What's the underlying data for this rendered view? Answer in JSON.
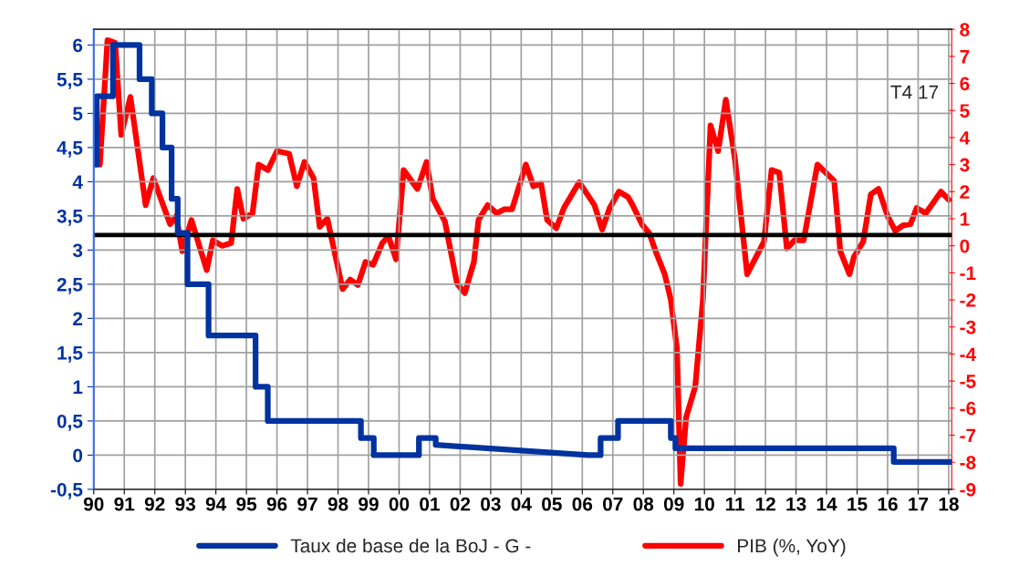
{
  "chart_data": {
    "type": "line",
    "xlim": [
      1990,
      2018.1
    ],
    "xticks": [
      {
        "value": 1990,
        "label": "90"
      },
      {
        "value": 1991,
        "label": "91"
      },
      {
        "value": 1992,
        "label": "92"
      },
      {
        "value": 1993,
        "label": "93"
      },
      {
        "value": 1994,
        "label": "94"
      },
      {
        "value": 1995,
        "label": "95"
      },
      {
        "value": 1996,
        "label": "96"
      },
      {
        "value": 1997,
        "label": "97"
      },
      {
        "value": 1998,
        "label": "98"
      },
      {
        "value": 1999,
        "label": "99"
      },
      {
        "value": 2000,
        "label": "00"
      },
      {
        "value": 2001,
        "label": "01"
      },
      {
        "value": 2002,
        "label": "02"
      },
      {
        "value": 2003,
        "label": "03"
      },
      {
        "value": 2004,
        "label": "04"
      },
      {
        "value": 2005,
        "label": "05"
      },
      {
        "value": 2006,
        "label": "06"
      },
      {
        "value": 2007,
        "label": "07"
      },
      {
        "value": 2008,
        "label": "08"
      },
      {
        "value": 2009,
        "label": "09"
      },
      {
        "value": 2010,
        "label": "10"
      },
      {
        "value": 2011,
        "label": "11"
      },
      {
        "value": 2012,
        "label": "12"
      },
      {
        "value": 2013,
        "label": "13"
      },
      {
        "value": 2014,
        "label": "14"
      },
      {
        "value": 2015,
        "label": "15"
      },
      {
        "value": 2016,
        "label": "16"
      },
      {
        "value": 2017,
        "label": "17"
      },
      {
        "value": 2018,
        "label": "18"
      }
    ],
    "ylim": [
      -0.5,
      6.23
    ],
    "yticks": [
      {
        "value": -0.5,
        "label": "-0,5"
      },
      0,
      {
        "value": 0.5,
        "label": "0,5"
      },
      1,
      {
        "value": 1.5,
        "label": "1,5"
      },
      2,
      {
        "value": 2.5,
        "label": "2,5"
      },
      3,
      {
        "value": 3.5,
        "label": "3,5"
      },
      4,
      {
        "value": 4.5,
        "label": "4,5"
      },
      5,
      {
        "value": 5.5,
        "label": "5,5"
      },
      6
    ],
    "y2lim": [
      -9,
      8
    ],
    "y2ticks": [
      -9,
      -8,
      -7,
      -6,
      -5,
      -4,
      -3,
      -2,
      -1,
      0,
      1,
      2,
      3,
      4,
      5,
      6,
      7,
      8
    ],
    "grid": true,
    "legend": "bottom",
    "marker": "none",
    "line_style": "solid",
    "ref_lines": [
      {
        "axis": "y",
        "value": 3.22,
        "color": "#000000"
      }
    ],
    "annotations": [
      "T4 17"
    ],
    "series": [
      {
        "name": "Taux de base de la BoJ - G -",
        "color": "#0033a0",
        "axis": "y",
        "x": [
          1990,
          1990.1,
          1990.1,
          1990.63,
          1990.63,
          1991.5,
          1991.5,
          1991.9,
          1991.9,
          1992.25,
          1992.25,
          1992.55,
          1992.55,
          1992.75,
          1992.75,
          1993.07,
          1993.07,
          1993.76,
          1993.76,
          1995.3,
          1995.3,
          1995.7,
          1995.7,
          1998.75,
          1998.75,
          1999.17,
          1999.17,
          2000.65,
          2000.65,
          2001.2,
          2001.2,
          2006.2,
          2006.6,
          2006.6,
          2007.17,
          2007.17,
          2008.9,
          2008.9,
          2009.05,
          2009.05,
          2016.2,
          2016.2,
          2018.1
        ],
        "values": [
          4.25,
          4.25,
          5.25,
          5.25,
          6.0,
          6.0,
          5.5,
          5.5,
          5.0,
          5.0,
          4.5,
          4.5,
          3.75,
          3.75,
          3.25,
          3.25,
          2.5,
          2.5,
          1.75,
          1.75,
          1.0,
          1.0,
          0.5,
          0.5,
          0.25,
          0.25,
          0.0,
          0.0,
          0.25,
          0.25,
          0.15,
          0.0,
          0.0,
          0.25,
          0.25,
          0.5,
          0.5,
          0.25,
          0.25,
          0.1,
          0.1,
          -0.1,
          -0.1
        ]
      },
      {
        "name": "PIB (%, YoY)",
        "color": "#ff0000",
        "axis": "y2",
        "x": [
          1990.2,
          1990.45,
          1990.7,
          1990.9,
          1991.2,
          1991.7,
          1991.95,
          1992.5,
          1992.7,
          1992.9,
          1993.2,
          1993.7,
          1993.9,
          1994.2,
          1994.5,
          1994.7,
          1994.9,
          1995.2,
          1995.4,
          1995.7,
          1996.0,
          1996.4,
          1996.65,
          1996.9,
          1997.2,
          1997.4,
          1997.65,
          1998.15,
          1998.4,
          1998.65,
          1998.9,
          1999.15,
          1999.45,
          1999.65,
          1999.9,
          2000.15,
          2000.6,
          2000.9,
          2001.1,
          2001.5,
          2001.9,
          2002.15,
          2002.45,
          2002.6,
          2002.9,
          2003.2,
          2003.45,
          2003.7,
          2004.15,
          2004.4,
          2004.65,
          2004.85,
          2005.15,
          2005.4,
          2005.9,
          2006.4,
          2006.65,
          2006.9,
          2007.2,
          2007.5,
          2007.65,
          2007.95,
          2008.2,
          2008.4,
          2008.7,
          2008.9,
          2009.1,
          2009.22,
          2009.4,
          2009.7,
          2009.95,
          2010.2,
          2010.45,
          2010.7,
          2011.0,
          2011.4,
          2011.95,
          2012.2,
          2012.45,
          2012.7,
          2012.95,
          2013.25,
          2013.7,
          2014.25,
          2014.45,
          2014.75,
          2014.9,
          2015.2,
          2015.45,
          2015.7,
          2016.0,
          2016.25,
          2016.5,
          2016.75,
          2016.95,
          2017.25,
          2017.75,
          2018.0
        ],
        "values": [
          3.0,
          7.6,
          7.5,
          4.1,
          5.5,
          1.5,
          2.5,
          0.8,
          1.1,
          -0.2,
          0.95,
          -0.9,
          0.2,
          0.0,
          0.1,
          2.1,
          1.0,
          1.2,
          3.0,
          2.8,
          3.5,
          3.4,
          2.2,
          3.1,
          2.5,
          0.7,
          1.0,
          -1.6,
          -1.25,
          -1.45,
          -0.6,
          -0.7,
          0.1,
          0.35,
          -0.5,
          2.8,
          2.1,
          3.1,
          1.75,
          0.9,
          -1.4,
          -1.75,
          -0.6,
          0.95,
          1.5,
          1.2,
          1.35,
          1.35,
          3.0,
          2.2,
          2.3,
          0.95,
          0.65,
          1.4,
          2.35,
          1.5,
          0.6,
          1.4,
          2.0,
          1.8,
          1.5,
          0.8,
          0.45,
          -0.2,
          -1.05,
          -2.0,
          -3.8,
          -8.8,
          -6.35,
          -5.2,
          -2.0,
          4.45,
          3.5,
          5.4,
          3.2,
          -1.05,
          0.15,
          2.8,
          2.7,
          -0.1,
          0.2,
          0.2,
          3.0,
          2.4,
          -0.2,
          -1.05,
          -0.4,
          0.15,
          1.9,
          2.1,
          1.1,
          0.55,
          0.75,
          0.8,
          1.4,
          1.2,
          2.0,
          1.7
        ]
      }
    ]
  }
}
